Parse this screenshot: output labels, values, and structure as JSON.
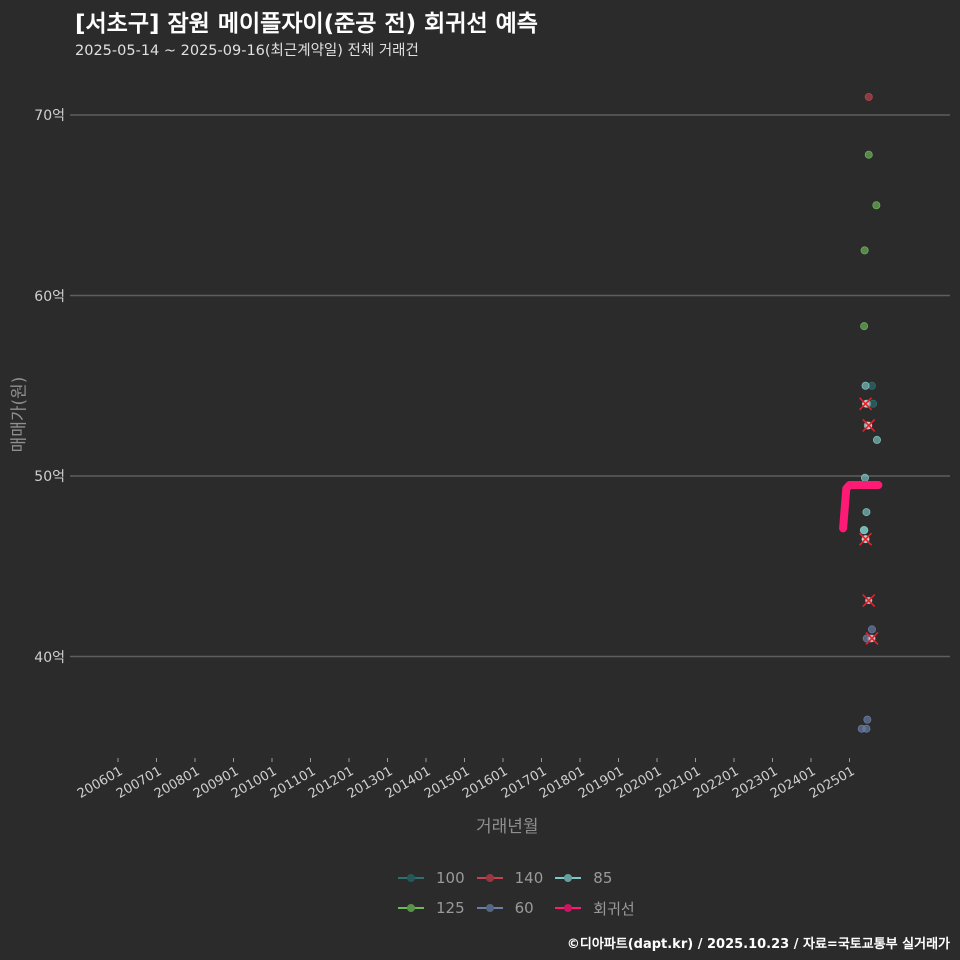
{
  "header": {
    "title": "[서초구] 잠원 메이플자이(준공 전) 회귀선 예측",
    "subtitle": "2025-05-14 ~ 2025-09-16(최근계약일) 전체 거래건"
  },
  "footer": "©디아파트(dapt.kr) / 2025.10.23 / 자료=국토교통부 실거래가",
  "chart_data": {
    "type": "scatter",
    "title": "[서초구] 잠원 메이플자이(준공 전) 회귀선 예측",
    "subtitle": "2025-05-14 ~ 2025-09-16(최근계약일) 전체 거래건",
    "xlabel": "거래년월",
    "ylabel": "매매가(원)",
    "x_tick_labels": [
      "200601",
      "200701",
      "200801",
      "200901",
      "201001",
      "201101",
      "201201",
      "201301",
      "201401",
      "201501",
      "201601",
      "201701",
      "201801",
      "201901",
      "202001",
      "202101",
      "202201",
      "202301",
      "202401",
      "202501"
    ],
    "y_tick_labels": [
      "40억",
      "50억",
      "60억",
      "70억"
    ],
    "y_ticks": [
      40,
      50,
      60,
      70
    ],
    "ylim": [
      34.5,
      72
    ],
    "y_unit": "억",
    "grid": "horizontal major",
    "legend_position": "bottom",
    "legend": [
      "100",
      "140",
      "85",
      "125",
      "60",
      "회귀선"
    ],
    "colors": {
      "100": "#2e6f6f",
      "140": "#c0444f",
      "85": "#7fc8c4",
      "125": "#6fb85a",
      "60": "#6b7fa6",
      "회귀선": "#ff1a75",
      "marker_x": "#e8202a"
    },
    "series": [
      {
        "name": "140",
        "points": [
          {
            "x": "2025-07",
            "y": 71.0
          }
        ]
      },
      {
        "name": "125",
        "points": [
          {
            "x": "2025-07",
            "y": 67.8
          },
          {
            "x": "2025-09",
            "y": 65.0
          },
          {
            "x": "2025-06",
            "y": 62.5
          },
          {
            "x": "2025-05",
            "y": 58.3
          }
        ]
      },
      {
        "name": "100",
        "points": [
          {
            "x": "2025-08",
            "y": 55.0
          },
          {
            "x": "2025-08",
            "y": 54.0
          }
        ]
      },
      {
        "name": "85",
        "points": [
          {
            "x": "2025-06",
            "y": 55.0
          },
          {
            "x": "2025-06",
            "y": 54.0
          },
          {
            "x": "2025-07",
            "y": 52.8
          },
          {
            "x": "2025-09",
            "y": 52.0
          },
          {
            "x": "2025-06",
            "y": 49.9
          },
          {
            "x": "2025-06",
            "y": 48.0
          },
          {
            "x": "2025-05",
            "y": 47.0
          },
          {
            "x": "2025-06",
            "y": 47.0
          },
          {
            "x": "2025-06",
            "y": 46.5
          }
        ]
      },
      {
        "name": "60",
        "points": [
          {
            "x": "2025-08",
            "y": 41.5
          },
          {
            "x": "2025-06",
            "y": 41.0
          },
          {
            "x": "2025-08",
            "y": 41.0
          },
          {
            "x": "2025-06",
            "y": 36.5
          },
          {
            "x": "2025-05",
            "y": 36.0
          },
          {
            "x": "2025-06",
            "y": 36.0
          }
        ]
      },
      {
        "name": "회귀선",
        "type": "line",
        "points": [
          {
            "x": "2024-11",
            "y": 47.1
          },
          {
            "x": "2024-12",
            "y": 49.3
          },
          {
            "x": "2025-01",
            "y": 49.5
          },
          {
            "x": "2025-10",
            "y": 49.5
          }
        ]
      }
    ],
    "x_marked_points": [
      {
        "x": "2025-06",
        "y": 54.0
      },
      {
        "x": "2025-07",
        "y": 52.8
      },
      {
        "x": "2025-06",
        "y": 46.5
      },
      {
        "x": "2025-07",
        "y": 43.1
      },
      {
        "x": "2025-08",
        "y": 41.0
      }
    ]
  },
  "legend_items": [
    {
      "label": "100",
      "color": "#2e6f6f"
    },
    {
      "label": "140",
      "color": "#c0444f"
    },
    {
      "label": "85",
      "color": "#7fc8c4"
    },
    {
      "label": "125",
      "color": "#6fb85a"
    },
    {
      "label": "60",
      "color": "#6b7fa6"
    },
    {
      "label": "회귀선",
      "color": "#ff1a75"
    }
  ]
}
